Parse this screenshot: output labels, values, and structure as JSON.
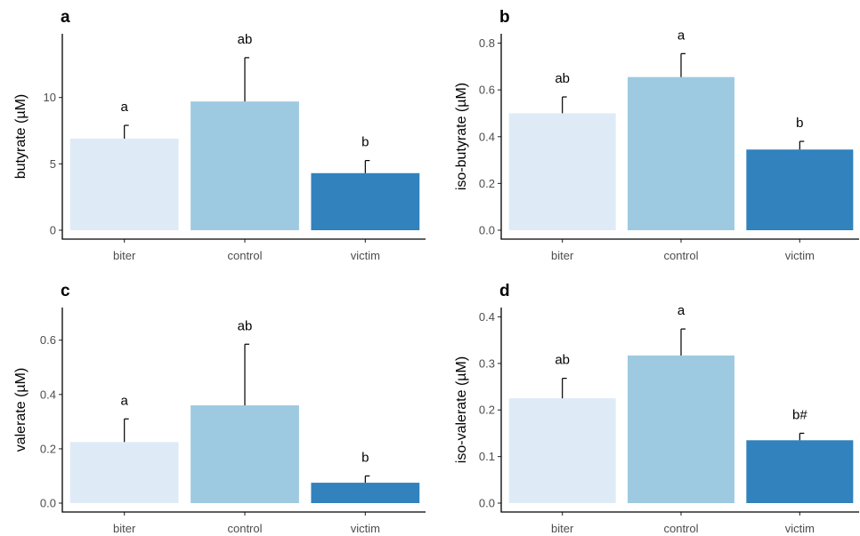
{
  "chart_data": [
    {
      "type": "bar",
      "panel": "a",
      "categories": [
        "biter",
        "control",
        "victim"
      ],
      "values": [
        6.9,
        9.7,
        4.3
      ],
      "errors": [
        1.0,
        3.3,
        0.95
      ],
      "significance": [
        "a",
        "ab",
        "b"
      ],
      "ylabel": "butyrate (µM)",
      "ylim": [
        0,
        14.8
      ],
      "yticks": [
        0,
        5,
        10
      ],
      "ytick_labels": [
        "0",
        "5",
        "10"
      ],
      "colors": [
        "#deebf7",
        "#9ecae1",
        "#3182bd"
      ],
      "grid": false
    },
    {
      "type": "bar",
      "panel": "b",
      "categories": [
        "biter",
        "control",
        "victim"
      ],
      "values": [
        0.5,
        0.655,
        0.345
      ],
      "errors": [
        0.07,
        0.1,
        0.035
      ],
      "significance": [
        "ab",
        "a",
        "b"
      ],
      "ylabel": "iso-butyrate (µM)",
      "ylim": [
        0,
        0.84
      ],
      "yticks": [
        0,
        0.2,
        0.4,
        0.6,
        0.8
      ],
      "ytick_labels": [
        "0.0",
        "0.2",
        "0.4",
        "0.6",
        "0.8"
      ],
      "colors": [
        "#deebf7",
        "#9ecae1",
        "#3182bd"
      ],
      "grid": false
    },
    {
      "type": "bar",
      "panel": "c",
      "categories": [
        "biter",
        "control",
        "victim"
      ],
      "values": [
        0.225,
        0.36,
        0.075
      ],
      "errors": [
        0.085,
        0.225,
        0.025
      ],
      "significance": [
        "a",
        "ab",
        "b"
      ],
      "ylabel": "valerate (µM)",
      "ylim": [
        0,
        0.72
      ],
      "yticks": [
        0,
        0.2,
        0.4,
        0.6
      ],
      "ytick_labels": [
        "0.0",
        "0.2",
        "0.4",
        "0.6"
      ],
      "colors": [
        "#deebf7",
        "#9ecae1",
        "#3182bd"
      ],
      "grid": false
    },
    {
      "type": "bar",
      "panel": "d",
      "categories": [
        "biter",
        "control",
        "victim"
      ],
      "values": [
        0.225,
        0.317,
        0.135
      ],
      "errors": [
        0.043,
        0.057,
        0.015
      ],
      "significance": [
        "ab",
        "a",
        "b#"
      ],
      "ylabel": "iso-valerate (µM)",
      "ylim": [
        0,
        0.42
      ],
      "yticks": [
        0,
        0.1,
        0.2,
        0.3,
        0.4
      ],
      "ytick_labels": [
        "0.0",
        "0.1",
        "0.2",
        "0.3",
        "0.4"
      ],
      "colors": [
        "#deebf7",
        "#9ecae1",
        "#3182bd"
      ],
      "grid": false
    }
  ]
}
